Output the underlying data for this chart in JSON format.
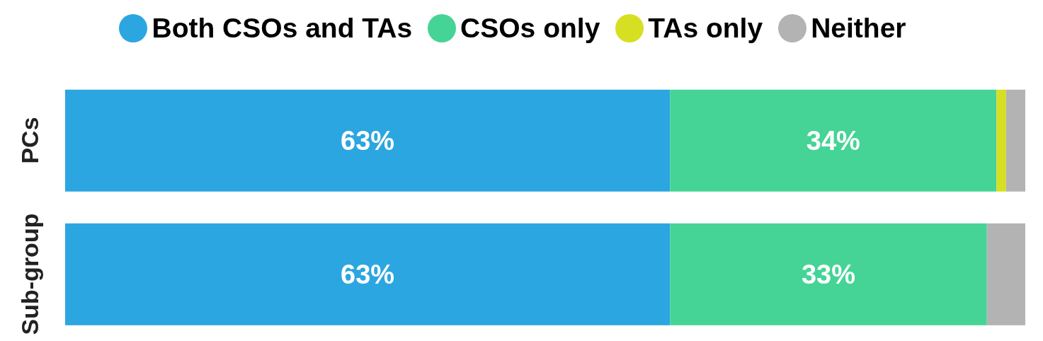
{
  "chart_data": {
    "type": "bar",
    "orientation": "horizontal",
    "stacked": true,
    "categories": [
      "PCs",
      "Sub-group"
    ],
    "series": [
      {
        "name": "Both CSOs and TAs",
        "color": "#2ca6e0",
        "values": [
          63,
          63
        ],
        "value_labels": [
          "63%",
          "63%"
        ]
      },
      {
        "name": "CSOs only",
        "color": "#45d496",
        "values": [
          34,
          33
        ],
        "value_labels": [
          "34%",
          "33%"
        ]
      },
      {
        "name": "TAs only",
        "color": "#d7df23",
        "values": [
          1,
          null
        ]
      },
      {
        "name": "Neither",
        "color": "#b3b3b3",
        "values": [
          2,
          4
        ]
      }
    ],
    "xlim": [
      0,
      100
    ],
    "legend": "top",
    "tick_labels": "y"
  }
}
